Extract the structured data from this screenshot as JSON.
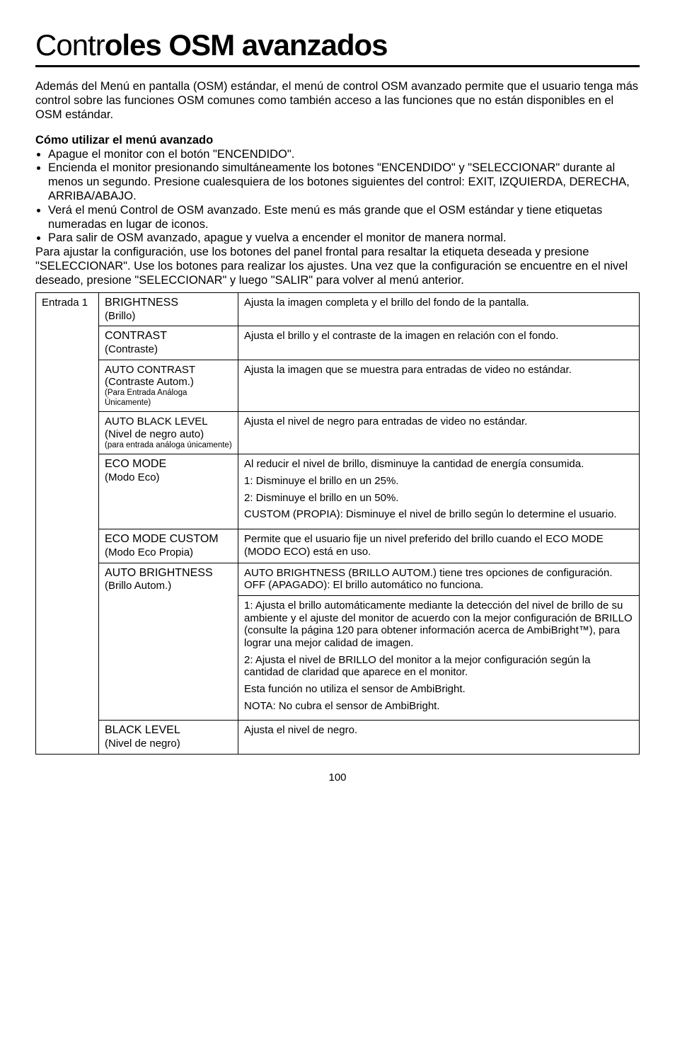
{
  "title_part1": "Contr",
  "title_part2": "oles OSM avanzados",
  "intro": "Además del Menú en pantalla (OSM) estándar, el menú de control OSM avanzado permite que el usuario tenga más control sobre las funciones OSM comunes como también acceso a las funciones que no están disponibles en el OSM estándar.",
  "howto_heading": "Cómo utilizar el menú avanzado",
  "bullets": [
    "Apague el monitor con el botón \"ENCENDIDO\".",
    "Encienda el monitor presionando simultáneamente los botones \"ENCENDIDO\" y \"SELECCIONAR\" durante al menos un segundo. Presione cualesquiera de los botones siguientes del control: EXIT, IZQUIERDA, DERECHA, ARRIBA/ABAJO.",
    "Verá el menú Control de OSM avanzado. Este menú es más grande que el OSM estándar y tiene etiquetas numeradas en lugar de iconos.",
    "Para salir de OSM avanzado, apague y vuelva a encender el monitor de manera normal."
  ],
  "after_bullets": "Para ajustar la configuración, use los botones del panel frontal para resaltar la etiqueta deseada y presione \"SELECCIONAR\". Use los botones para realizar los ajustes. Una vez que la configuración se encuentre en el nivel deseado, presione \"SELECCIONAR\" y luego \"SALIR\" para volver al menú anterior.",
  "col1_label": "Entrada 1",
  "rows": {
    "brightness": {
      "t": "BRIGHTNESS",
      "s": "(Brillo)",
      "d": "Ajusta la imagen completa y el brillo del fondo de la pantalla."
    },
    "contrast": {
      "t": "CONTRAST",
      "s": "(Contraste)",
      "d": "Ajusta el brillo y el contraste de la imagen en relación con el fondo."
    },
    "auto_contrast": {
      "t": "AUTO CONTRAST",
      "s": "(Contraste Autom.)",
      "sm": "(Para Entrada Análoga Únicamente)",
      "d": "Ajusta la imagen que se muestra para entradas de video no estándar."
    },
    "auto_black": {
      "t": "AUTO BLACK LEVEL",
      "s": "(Nivel de negro auto)",
      "sm": "(para entrada análoga únicamente)",
      "d": "Ajusta el nivel de negro para entradas de video no estándar."
    },
    "eco_mode": {
      "t": "ECO MODE",
      "s": "(Modo Eco)",
      "p1": "Al reducir el nivel de brillo, disminuye la cantidad de energía consumida.",
      "p2": "1: Disminuye el brillo en un 25%.",
      "p3": "2: Disminuye el brillo en un 50%.",
      "p4": "CUSTOM (PROPIA): Disminuye el nivel de brillo según lo determine el usuario."
    },
    "eco_custom": {
      "t": "ECO MODE CUSTOM",
      "s": "(Modo Eco Propia)",
      "d": "Permite que el usuario fije un nivel preferido del brillo cuando el ECO MODE (MODO ECO) está en uso."
    },
    "auto_bright": {
      "t": "AUTO BRIGHTNESS",
      "s": "(Brillo Autom.)",
      "p1": "AUTO BRIGHTNESS (BRILLO AUTOM.) tiene tres opciones de configuración.",
      "p1b": "OFF (APAGADO): El brillo automático no funciona.",
      "p2": "1: Ajusta el brillo automáticamente mediante la detección del nivel de brillo de su ambiente y el ajuste del monitor de acuerdo con la mejor configuración de BRILLO (consulte la página 120 para obtener información acerca de AmbiBright™), para lograr una mejor calidad de imagen.",
      "p3": "2: Ajusta el nivel de BRILLO del monitor a la mejor configuración según la cantidad de claridad que aparece en el monitor.",
      "p4": "Esta función no utiliza el sensor de AmbiBright.",
      "p5": "NOTA: No cubra el sensor de AmbiBright."
    },
    "black_level": {
      "t": "BLACK LEVEL",
      "s": "(Nivel de negro)",
      "d": "Ajusta el nivel de negro."
    }
  },
  "page_number": "100"
}
